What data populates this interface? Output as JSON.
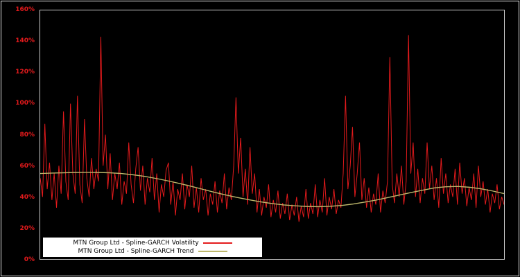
{
  "chart": {
    "title": "",
    "background": "#000000",
    "axis_label_color": "#e41a1c",
    "y_ticks": [
      "0%",
      "20%",
      "40%",
      "60%",
      "80%",
      "100%",
      "120%",
      "140%",
      "160%"
    ]
  },
  "chart_data": {
    "type": "line",
    "title": "",
    "xlabel": "",
    "ylabel": "",
    "x_tick_labels": [],
    "ylim": [
      0,
      1.6
    ],
    "y_tick_step": 0.2,
    "grid": false,
    "legend_position": "bottom-left-inside",
    "series": [
      {
        "name": "MTN Group Ltd - Spline-GARCH Volatility",
        "color": "#e41a1c",
        "values": [
          0.52,
          0.4,
          0.87,
          0.45,
          0.62,
          0.38,
          0.55,
          0.33,
          0.6,
          0.42,
          0.95,
          0.5,
          0.38,
          1.0,
          0.55,
          0.42,
          1.05,
          0.48,
          0.36,
          0.9,
          0.52,
          0.4,
          0.65,
          0.45,
          0.58,
          0.5,
          1.43,
          0.6,
          0.8,
          0.45,
          0.68,
          0.38,
          0.55,
          0.45,
          0.62,
          0.35,
          0.5,
          0.42,
          0.75,
          0.48,
          0.36,
          0.58,
          0.72,
          0.44,
          0.6,
          0.35,
          0.52,
          0.43,
          0.65,
          0.38,
          0.55,
          0.3,
          0.48,
          0.4,
          0.57,
          0.62,
          0.35,
          0.5,
          0.28,
          0.45,
          0.38,
          0.55,
          0.32,
          0.48,
          0.4,
          0.6,
          0.33,
          0.46,
          0.3,
          0.52,
          0.38,
          0.45,
          0.28,
          0.42,
          0.35,
          0.5,
          0.3,
          0.44,
          0.36,
          0.55,
          0.32,
          0.46,
          0.38,
          0.6,
          1.04,
          0.55,
          0.78,
          0.4,
          0.58,
          0.35,
          0.72,
          0.42,
          0.55,
          0.3,
          0.45,
          0.28,
          0.4,
          0.33,
          0.48,
          0.27,
          0.38,
          0.3,
          0.44,
          0.26,
          0.36,
          0.29,
          0.42,
          0.25,
          0.35,
          0.28,
          0.4,
          0.24,
          0.34,
          0.27,
          0.45,
          0.26,
          0.36,
          0.29,
          0.48,
          0.27,
          0.38,
          0.3,
          0.52,
          0.28,
          0.4,
          0.32,
          0.45,
          0.29,
          0.38,
          0.33,
          0.55,
          1.05,
          0.45,
          0.6,
          0.85,
          0.4,
          0.55,
          0.75,
          0.38,
          0.52,
          0.33,
          0.46,
          0.3,
          0.42,
          0.35,
          0.55,
          0.3,
          0.44,
          0.36,
          0.5,
          1.3,
          0.48,
          0.36,
          0.55,
          0.4,
          0.6,
          0.35,
          0.5,
          1.44,
          0.55,
          0.75,
          0.4,
          0.58,
          0.36,
          0.52,
          0.42,
          0.75,
          0.45,
          0.6,
          0.38,
          0.52,
          0.33,
          0.65,
          0.42,
          0.55,
          0.36,
          0.48,
          0.4,
          0.58,
          0.35,
          0.62,
          0.42,
          0.52,
          0.34,
          0.46,
          0.38,
          0.55,
          0.33,
          0.6,
          0.4,
          0.5,
          0.35,
          0.45,
          0.3,
          0.42,
          0.36,
          0.48,
          0.32,
          0.4,
          0.35
        ]
      },
      {
        "name": "MTN Group Ltd - Spline-GARCH Trend",
        "color": "#bdb76b",
        "values": [
          0.55,
          0.553,
          0.555,
          0.557,
          0.558,
          0.557,
          0.555,
          0.55,
          0.542,
          0.532,
          0.518,
          0.503,
          0.486,
          0.468,
          0.449,
          0.43,
          0.412,
          0.396,
          0.381,
          0.368,
          0.357,
          0.348,
          0.342,
          0.338,
          0.337,
          0.339,
          0.345,
          0.354,
          0.366,
          0.38,
          0.396,
          0.412,
          0.428,
          0.443,
          0.458,
          0.465,
          0.467,
          0.462,
          0.452,
          0.438,
          0.421
        ]
      }
    ]
  }
}
